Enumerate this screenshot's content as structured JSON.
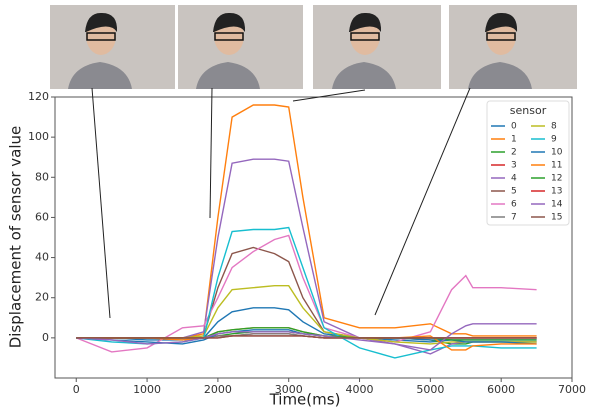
{
  "chart_data": {
    "type": "line",
    "xlabel": "Time(ms)",
    "ylabel": "Displacement of sensor value",
    "legend_title": "sensor",
    "legend": "upper right",
    "x": [
      0,
      500,
      1000,
      1500,
      1800,
      2000,
      2200,
      2500,
      2800,
      3000,
      3200,
      3500,
      4000,
      4500,
      5000,
      5300,
      5500,
      5600,
      6000,
      6500
    ],
    "xlim": [
      -300,
      7000
    ],
    "xticks": [
      0,
      1000,
      2000,
      3000,
      4000,
      5000,
      6000,
      7000
    ],
    "ylim": [
      -20,
      120
    ],
    "yticks": [
      0,
      20,
      40,
      60,
      80,
      100,
      120
    ],
    "series": [
      {
        "name": "0",
        "color": "#1f77b4",
        "values": [
          0,
          0,
          -1,
          -1,
          0,
          8,
          13,
          15,
          15,
          14,
          8,
          2,
          0,
          -1,
          -2,
          -1,
          -1,
          -1,
          -1,
          -1
        ]
      },
      {
        "name": "1",
        "color": "#ff7f0e",
        "values": [
          0,
          0,
          0,
          0,
          2,
          60,
          110,
          116,
          116,
          115,
          70,
          10,
          5,
          5,
          7,
          2,
          2,
          1,
          1,
          1
        ]
      },
      {
        "name": "2",
        "color": "#2ca02c",
        "values": [
          0,
          0,
          0,
          0,
          0,
          1,
          2,
          3,
          3,
          3,
          2,
          1,
          0,
          0,
          -1,
          -3,
          -3,
          -2,
          -2,
          -2
        ]
      },
      {
        "name": "3",
        "color": "#d62728",
        "values": [
          0,
          0,
          0,
          0,
          0,
          1,
          1,
          2,
          2,
          2,
          1,
          0,
          0,
          0,
          0,
          0,
          0,
          0,
          0,
          0
        ]
      },
      {
        "name": "4",
        "color": "#9467bd",
        "values": [
          0,
          0,
          0,
          0,
          3,
          50,
          87,
          89,
          89,
          88,
          55,
          8,
          0,
          -3,
          -8,
          -3,
          -2,
          -2,
          -2,
          -2
        ]
      },
      {
        "name": "5",
        "color": "#8c564b",
        "values": [
          0,
          0,
          0,
          0,
          1,
          25,
          42,
          45,
          42,
          38,
          20,
          3,
          0,
          0,
          0,
          0,
          0,
          0,
          0,
          0
        ]
      },
      {
        "name": "6",
        "color": "#e377c2",
        "values": [
          0,
          -7,
          -5,
          5,
          6,
          20,
          35,
          43,
          49,
          51,
          30,
          5,
          0,
          -2,
          3,
          24,
          31,
          25,
          25,
          24
        ]
      },
      {
        "name": "7",
        "color": "#7f7f7f",
        "values": [
          0,
          0,
          0,
          0,
          0,
          1,
          1,
          2,
          2,
          2,
          1,
          0,
          0,
          0,
          0,
          0,
          0,
          0,
          0,
          0
        ]
      },
      {
        "name": "8",
        "color": "#bcbd22",
        "values": [
          0,
          0,
          0,
          0,
          1,
          15,
          24,
          25,
          26,
          26,
          15,
          3,
          0,
          -2,
          -3,
          -2,
          -2,
          -2,
          -2,
          -2
        ]
      },
      {
        "name": "9",
        "color": "#17becf",
        "values": [
          0,
          -2,
          -3,
          -2,
          0,
          30,
          53,
          54,
          54,
          55,
          35,
          5,
          -5,
          -10,
          -6,
          -4,
          -4,
          -4,
          -5,
          -5
        ]
      },
      {
        "name": "10",
        "color": "#1f77b4",
        "values": [
          0,
          -1,
          -2,
          -3,
          -1,
          2,
          3,
          4,
          4,
          4,
          2,
          1,
          0,
          0,
          -1,
          -1,
          -2,
          -2,
          -2,
          -3
        ]
      },
      {
        "name": "11",
        "color": "#ff7f0e",
        "values": [
          0,
          0,
          0,
          -1,
          0,
          3,
          4,
          5,
          5,
          5,
          3,
          1,
          0,
          0,
          1,
          -6,
          -6,
          -4,
          -3,
          -3
        ]
      },
      {
        "name": "12",
        "color": "#2ca02c",
        "values": [
          0,
          0,
          0,
          0,
          0,
          3,
          4,
          5,
          5,
          5,
          3,
          1,
          0,
          0,
          0,
          -1,
          -1,
          -1,
          -1,
          -1
        ]
      },
      {
        "name": "13",
        "color": "#d62728",
        "values": [
          0,
          0,
          0,
          0,
          0,
          0,
          1,
          1,
          1,
          1,
          1,
          0,
          0,
          0,
          0,
          0,
          0,
          0,
          0,
          0
        ]
      },
      {
        "name": "14",
        "color": "#9467bd",
        "values": [
          0,
          -1,
          -3,
          -2,
          0,
          2,
          3,
          3,
          3,
          3,
          2,
          1,
          -1,
          -3,
          -6,
          2,
          6,
          7,
          7,
          7
        ]
      },
      {
        "name": "15",
        "color": "#8c564b",
        "values": [
          0,
          0,
          0,
          0,
          0,
          0,
          1,
          1,
          1,
          1,
          1,
          0,
          0,
          0,
          0,
          0,
          0,
          0,
          0,
          0
        ]
      }
    ]
  }
}
